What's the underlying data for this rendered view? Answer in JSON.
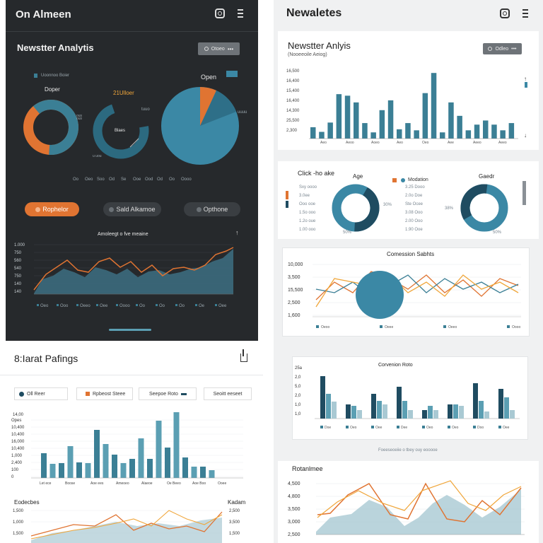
{
  "left_panel": {
    "app_title": "On Almeen",
    "section_title": "Newstter Analytis",
    "header_button": "Otoeo",
    "label_donut1": "Doper",
    "label_donut2": "21Ulloer",
    "label_pie": "Open",
    "legend_top": "Uoonnoo Boier",
    "donut_mid_label": "Blaes",
    "pie_side_1": "tuuo",
    "pie_side_2": "uuuu",
    "axis_labels": [
      "Oo",
      "Oeo",
      "Soo",
      "Od",
      "Se",
      "Ooe",
      "Ood",
      "Od",
      "Oo",
      "Oooo"
    ],
    "buttons": [
      "Rophelor",
      "Sald Alkamoe",
      "Opthone"
    ],
    "line_chart_title": "Amoleegt o fve meaine",
    "line_y_ticks": [
      "1.000",
      "750",
      "560",
      "540",
      "750",
      "140",
      "140"
    ],
    "line_x_labels": [
      "Oeo",
      "Ooo",
      "Oeeo",
      "Oee",
      "Oooo",
      "Oo",
      "Oo",
      "Oo",
      "Oe",
      "Oee"
    ]
  },
  "right_panel": {
    "title": "Newaletes",
    "section_title": "Newstter Anlyis",
    "subtitle": "(Nooeeoile Aeiog)",
    "header_button": "Odleo",
    "bar_y_ticks": [
      "16,500",
      "16,400",
      "15,400",
      "16,400",
      "14,300",
      "25,500",
      "2,300"
    ],
    "bar_x_labels": [
      "Aeo",
      "Aeoo",
      "Aoeo",
      "Aeo",
      "Oeo",
      "Aee",
      "Aeeo",
      "Aeeo"
    ],
    "click_rate_title": "Click -ho ake",
    "age_title": "Age",
    "gender_title": "Gaedr",
    "age_legend": "Modation",
    "click_items": [
      "Sxy oooo",
      "3.0ee",
      "Ooo ooe",
      "1.5o ooo",
      "1.2o oue",
      "1.00 ooo"
    ],
    "age_pct": [
      "30%",
      "50%"
    ],
    "age_stats": [
      "3.25 Dooo",
      "2.0o Doe",
      "Ste Ocee",
      "3.08 Ooo",
      "2.00 Ooo",
      "1.90 Ooe"
    ],
    "gender_pct": [
      "38%",
      "50%"
    ],
    "conversion_title": "Comession Sabhts",
    "conv_y_ticks": [
      "10,000",
      "3,500",
      "15,500",
      "2,500",
      "1,600"
    ],
    "conv_x_labels": [
      "Oeoo",
      "Oeee",
      "Oeeo",
      "Oooo"
    ],
    "rate_title": "Corvenion Roto",
    "rate_y_ticks": [
      "25a",
      "2,0",
      "5,0",
      "2,0",
      "1,0",
      "1,0"
    ],
    "rate_x_labels": [
      "Doe",
      "Oeo",
      "Oee",
      "Dee",
      "Oeo",
      "Oeo",
      "Doo",
      "Oee"
    ],
    "footer_note": "Foeeseoeiie o tbey ouy eooooe",
    "retention_title": "Rotanlmee",
    "ret_y_ticks": [
      "4,500",
      "4,800",
      "3,500",
      "3,000",
      "2,500"
    ]
  },
  "bottom_left": {
    "title": "8:Iarat Pafings",
    "tabs": [
      "Oll Reer",
      "Rpbeost Steee",
      "Seepoe Roto",
      "Seoitt eeseet"
    ],
    "bar_y_ticks": [
      "Opes",
      "10,400",
      "10,400",
      "16,000",
      "10,400",
      "1,000",
      "2,400",
      "100",
      "0"
    ],
    "bar_y_top": "14,00",
    "bar_x_labels": [
      "Let ece",
      "Boose",
      "Aoe ees",
      "Ameoeo",
      "Alaeoe",
      "Oe Beeo",
      "Aoe Boo",
      "Ooee"
    ],
    "engagement_title": "Eodecbes",
    "engagement_right_title": "Kadam",
    "eng_y_left": [
      "1,500",
      "1,000",
      "1,500"
    ],
    "eng_y_right": [
      "2,500",
      "3,500",
      "1,500"
    ]
  },
  "colors": {
    "dark_bg": "#26292c",
    "teal": "#3b7f95",
    "teal_light": "#5b9fb3",
    "navy": "#1f4c61",
    "orange": "#e07432",
    "yellow": "#f0a63a",
    "gray_panel": "#f0f1f2"
  },
  "chart_data": [
    {
      "type": "bar",
      "title": "Newstter Anlyis",
      "values": [
        22,
        13,
        31,
        86,
        83,
        70,
        30,
        12,
        55,
        74,
        18,
        30,
        16,
        88,
        127,
        12,
        70,
        44,
        16,
        27,
        35,
        27,
        16,
        30
      ]
    },
    {
      "type": "bar",
      "title": "8:Iarat Pafings",
      "values": [
        35,
        20,
        21,
        45,
        22,
        21,
        68,
        48,
        33,
        21,
        27,
        56,
        27,
        81,
        43,
        93,
        29,
        16,
        16,
        11
      ]
    },
    {
      "type": "line",
      "title": "Comession Sabhts",
      "series": [
        {
          "values": [
            20,
            45,
            30,
            60,
            50,
            35,
            55,
            30,
            48,
            25,
            50,
            40
          ]
        },
        {
          "values": [
            35,
            30,
            45,
            25,
            40,
            55,
            30,
            50,
            35,
            45,
            30,
            42
          ]
        },
        {
          "values": [
            10,
            50,
            45,
            40,
            55,
            30,
            45,
            25,
            55,
            35,
            45,
            30
          ]
        }
      ]
    },
    {
      "type": "bar",
      "title": "Corvenion Roto",
      "series": [
        {
          "values": [
            60,
            20,
            35,
            45,
            12,
            20,
            50,
            42
          ]
        },
        {
          "values": [
            35,
            18,
            25,
            25,
            18,
            20,
            25,
            30
          ]
        },
        {
          "values": [
            24,
            12,
            20,
            12,
            12,
            18,
            10,
            12
          ]
        }
      ]
    }
  ]
}
